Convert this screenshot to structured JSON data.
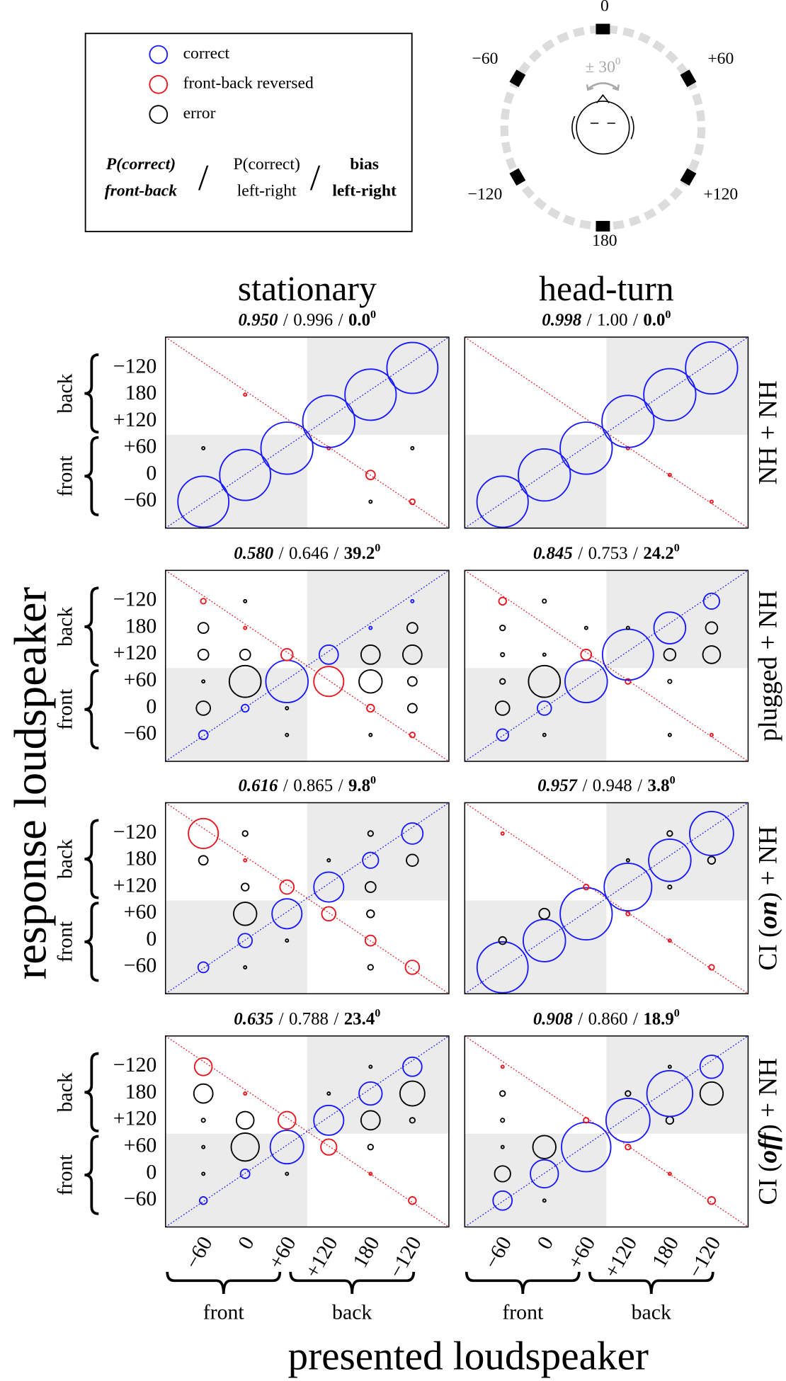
{
  "legend": {
    "items": [
      {
        "name": "correct",
        "color": "#1a1aff"
      },
      {
        "name": "front-back reversed",
        "color": "#e8141e"
      },
      {
        "name": "error",
        "color": "#000000"
      }
    ],
    "formula": {
      "front_back": [
        "P(correct)",
        "front-back"
      ],
      "left_right": [
        "P(correct)",
        "left-right"
      ],
      "bias": [
        "bias",
        "left-right"
      ]
    }
  },
  "separator": "/",
  "degree": "0",
  "diagram": {
    "speakers": [
      "0",
      "+60",
      "+120",
      "180",
      "−120",
      "−60"
    ],
    "head_turn": "± 30"
  },
  "column_titles": [
    "stationary",
    "head-turn"
  ],
  "row_labels": [
    [
      "NH + NH"
    ],
    [
      "plugged + NH"
    ],
    [
      "CI (",
      "on",
      ") + NH"
    ],
    [
      "CI (",
      "off",
      ") + NH"
    ]
  ],
  "x_label": "presented loudspeaker",
  "y_label": "response loudspeaker",
  "groups": [
    "front",
    "back"
  ],
  "categories": [
    "−60",
    "0",
    "+60",
    "+120",
    "180",
    "−120"
  ],
  "chart_data": [
    {
      "type": "bubble",
      "title": [
        "0.950",
        "0.996",
        "0.0"
      ],
      "values": [
        [
          0.93,
          0,
          0.003,
          0,
          0,
          0
        ],
        [
          0,
          0.93,
          0,
          0,
          0.003,
          0
        ],
        [
          0,
          0,
          0.97,
          0,
          0,
          0
        ],
        [
          0,
          0,
          0.003,
          0.97,
          0,
          0
        ],
        [
          0.003,
          0.03,
          0,
          0,
          0.94,
          0
        ],
        [
          0.01,
          0,
          0.003,
          0,
          0,
          0.93
        ]
      ]
    },
    {
      "type": "bubble",
      "title": [
        "0.998",
        "1.00",
        "0.0"
      ],
      "values": [
        [
          0.94,
          0,
          0,
          0,
          0,
          0
        ],
        [
          0,
          0.97,
          0,
          0,
          0,
          0
        ],
        [
          0,
          0,
          0.97,
          0,
          0,
          0
        ],
        [
          0,
          0,
          0.003,
          0.97,
          0,
          0
        ],
        [
          0,
          0.003,
          0,
          0,
          0.97,
          0
        ],
        [
          0.003,
          0,
          0,
          0,
          0,
          0.97
        ]
      ]
    },
    {
      "type": "bubble",
      "title": [
        "0.580",
        "0.646",
        "39.2"
      ],
      "values": [
        [
          0.03,
          0.07,
          0.003,
          0.04,
          0.04,
          0.01
        ],
        [
          0,
          0.02,
          0.36,
          0.04,
          0.003,
          0.003
        ],
        [
          0.003,
          0.003,
          0.64,
          0.05,
          0,
          0
        ],
        [
          0,
          0,
          0.32,
          0.13,
          0,
          0
        ],
        [
          0.003,
          0.02,
          0.19,
          0.13,
          0.003,
          0
        ],
        [
          0.01,
          0.03,
          0.03,
          0.13,
          0.04,
          0.003
        ]
      ]
    },
    {
      "type": "bubble",
      "title": [
        "0.845",
        "0.753",
        "24.2"
      ],
      "values": [
        [
          0.05,
          0.07,
          0.01,
          0.005,
          0.01,
          0.02
        ],
        [
          0.003,
          0.07,
          0.36,
          0.003,
          0,
          0.005
        ],
        [
          0,
          0,
          0.64,
          0.04,
          0.003,
          0
        ],
        [
          0,
          0,
          0.01,
          0.93,
          0.003,
          0
        ],
        [
          0.003,
          0,
          0.005,
          0.05,
          0.36,
          0
        ],
        [
          0.003,
          0,
          0,
          0.11,
          0.05,
          0.09
        ]
      ]
    },
    {
      "type": "bubble",
      "title": [
        "0.616",
        "0.865",
        "9.8"
      ],
      "values": [
        [
          0.04,
          0,
          0,
          0,
          0.03,
          0.32
        ],
        [
          0.003,
          0.07,
          0.19,
          0.02,
          0.003,
          0.01
        ],
        [
          0,
          0.003,
          0.32,
          0.07,
          0,
          0
        ],
        [
          0,
          0,
          0.07,
          0.32,
          0.003,
          0
        ],
        [
          0.01,
          0.04,
          0.02,
          0.04,
          0.09,
          0.01
        ],
        [
          0.07,
          0,
          0,
          0,
          0.05,
          0.16
        ]
      ]
    },
    {
      "type": "bubble",
      "title": [
        "0.957",
        "0.948",
        "3.8"
      ],
      "values": [
        [
          0.93,
          0.02,
          0,
          0,
          0,
          0.003
        ],
        [
          0,
          0.64,
          0.04,
          0,
          0,
          0
        ],
        [
          0,
          0,
          0.97,
          0.01,
          0,
          0
        ],
        [
          0,
          0,
          0.005,
          0.81,
          0.003,
          0
        ],
        [
          0,
          0.003,
          0,
          0.005,
          0.64,
          0.01
        ],
        [
          0.01,
          0,
          0,
          0,
          0.02,
          0.69
        ]
      ]
    },
    {
      "type": "bubble",
      "title": [
        "0.635",
        "0.788",
        "23.4"
      ],
      "values": [
        [
          0.02,
          0.003,
          0.003,
          0.005,
          0.13,
          0.11
        ],
        [
          0,
          0.03,
          0.28,
          0.11,
          0.003,
          0
        ],
        [
          0,
          0.003,
          0.4,
          0.11,
          0,
          0
        ],
        [
          0,
          0,
          0.09,
          0.32,
          0.003,
          0
        ],
        [
          0,
          0.003,
          0.01,
          0.13,
          0.19,
          0.003
        ],
        [
          0.02,
          0,
          0,
          0.01,
          0.22,
          0.13
        ]
      ]
    },
    {
      "type": "bubble",
      "title": [
        "0.908",
        "0.860",
        "18.9"
      ],
      "values": [
        [
          0.13,
          0.09,
          0.003,
          0.005,
          0.01,
          0.003
        ],
        [
          0.003,
          0.28,
          0.19,
          0,
          0,
          0
        ],
        [
          0,
          0,
          0.87,
          0.01,
          0,
          0
        ],
        [
          0,
          0,
          0.01,
          0.69,
          0.01,
          0
        ],
        [
          0,
          0.003,
          0,
          0.02,
          0.75,
          0.003
        ],
        [
          0.02,
          0,
          0,
          0,
          0.19,
          0.19
        ]
      ]
    }
  ]
}
